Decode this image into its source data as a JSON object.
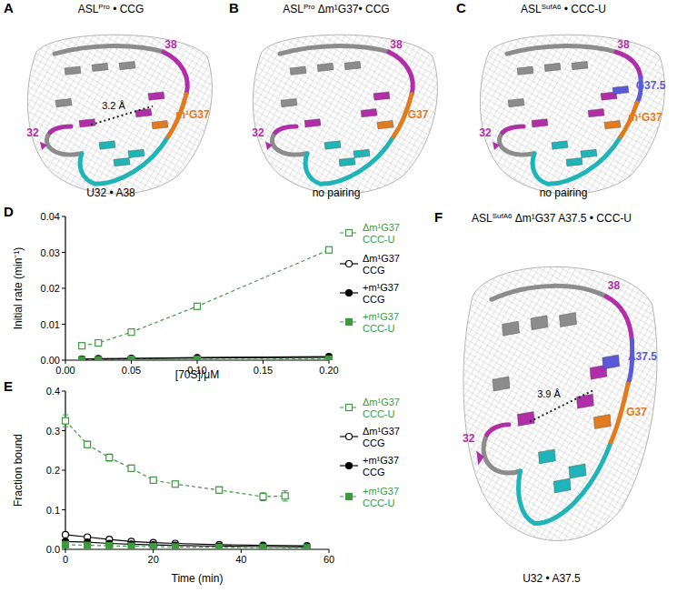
{
  "chart_data": [
    {
      "type": "line",
      "panel": "D",
      "x_label": "[70S]/μM",
      "y_label": "Initial rate (min⁻¹)",
      "xlim": [
        0,
        0.2
      ],
      "ylim": [
        0,
        0.04
      ],
      "xticks": [
        {
          "value": 0,
          "label": "0.00"
        },
        0.05,
        {
          "value": 0.1,
          "label": "0.10"
        },
        0.15,
        {
          "value": 0.2,
          "label": "0.20"
        }
      ],
      "yticks": [
        {
          "value": 0,
          "label": "0.00"
        },
        0.01,
        0.02,
        0.03,
        0.04
      ],
      "grid": false,
      "legend": "right",
      "x": [
        0.0125,
        0.025,
        0.05,
        0.1,
        0.2
      ],
      "series": [
        {
          "name": "Δm¹G37 CCC-U",
          "color": "#3d9a3f",
          "marker": "square_open",
          "line_style": "dashed",
          "values": [
            0.004,
            0.0048,
            0.0078,
            0.015,
            0.0307
          ],
          "errors": [
            0.0003,
            0.0003,
            0.0004,
            0.0005,
            0.0007
          ]
        },
        {
          "name": "Δm¹G37 CCG",
          "color": "#000000",
          "marker": "circle_open",
          "line_style": "solid",
          "values": [
            0.0003,
            0.0004,
            0.0005,
            0.0007,
            0.001
          ]
        },
        {
          "name": "+m¹G37 CCG",
          "color": "#000000",
          "marker": "circle",
          "line_style": "solid",
          "values": [
            0.0002,
            0.0003,
            0.0004,
            0.0006,
            0.0008
          ]
        },
        {
          "name": "+m¹G37 CCC-U",
          "color": "#3d9a3f",
          "marker": "square",
          "line_style": "dashed",
          "values": [
            0.0001,
            0.0001,
            0.0002,
            0.0002,
            0.0003
          ]
        }
      ]
    },
    {
      "type": "line",
      "panel": "E",
      "x_label": "Time (min)",
      "y_label": "Fraction bound",
      "xlim": [
        0,
        60
      ],
      "ylim": [
        0,
        0.4
      ],
      "xticks": [
        0,
        20,
        40,
        60
      ],
      "yticks": [
        {
          "value": 0,
          "label": "0.0"
        },
        0.1,
        0.2,
        0.3,
        0.4
      ],
      "grid": false,
      "legend": "right",
      "series": [
        {
          "name": "Δm¹G37 CCC-U",
          "color": "#3d9a3f",
          "marker": "square_open",
          "line_style": "dashed",
          "x": [
            0,
            5,
            10,
            15,
            20,
            25,
            35,
            45,
            50
          ],
          "values": [
            0.325,
            0.265,
            0.232,
            0.205,
            0.175,
            0.165,
            0.15,
            0.133,
            0.135
          ],
          "errors": [
            0.015,
            0.008,
            0.009,
            0.008,
            0.007,
            0.007,
            0.008,
            0.01,
            0.013
          ]
        },
        {
          "name": "Δm¹G37 CCG",
          "color": "#000000",
          "marker": "circle_open",
          "line_style": "solid",
          "x": [
            0,
            5,
            10,
            15,
            20,
            25,
            35,
            45,
            55
          ],
          "values": [
            0.037,
            0.031,
            0.025,
            0.02,
            0.017,
            0.015,
            0.012,
            0.01,
            0.009
          ]
        },
        {
          "name": "+m¹G37 CCG",
          "color": "#000000",
          "marker": "circle",
          "line_style": "solid",
          "x": [
            0,
            5,
            10,
            15,
            20,
            25,
            35,
            45,
            55
          ],
          "values": [
            0.02,
            0.018,
            0.015,
            0.013,
            0.011,
            0.01,
            0.008,
            0.007,
            0.006
          ]
        },
        {
          "name": "+m¹G37 CCC-U",
          "color": "#3d9a3f",
          "marker": "square",
          "line_style": "dashed",
          "x": [
            0,
            5,
            10,
            15,
            20,
            25,
            35,
            45,
            55
          ],
          "values": [
            0.012,
            0.01,
            0.009,
            0.008,
            0.007,
            0.006,
            0.005,
            0.005,
            0.004
          ]
        }
      ]
    }
  ],
  "structures": [
    {
      "letter": "A",
      "title": [
        "ASL",
        "Pro",
        " • CCG"
      ],
      "labels": [
        "38",
        "m¹G37",
        "32"
      ],
      "distance": "3.2 Å",
      "caption": "U32 • A38"
    },
    {
      "letter": "B",
      "title": [
        "ASL",
        "Pro",
        " Δm¹G37• CCG"
      ],
      "labels": [
        "38",
        "G37",
        "32"
      ],
      "caption": "no pairing"
    },
    {
      "letter": "C",
      "title": [
        "ASL",
        "SufA6",
        " • CCC-U"
      ],
      "labels": [
        "38",
        "G37.5",
        "m¹G37",
        "32"
      ],
      "caption": "no pairing"
    },
    {
      "letter": "F",
      "title": [
        "ASL",
        "SufA6",
        " Δm¹G37 A37.5 • CCC-U"
      ],
      "labels": [
        "38",
        "A37.5",
        "G37",
        "32"
      ],
      "distance": "3.9 Å",
      "caption": "U32 • A37.5"
    }
  ]
}
